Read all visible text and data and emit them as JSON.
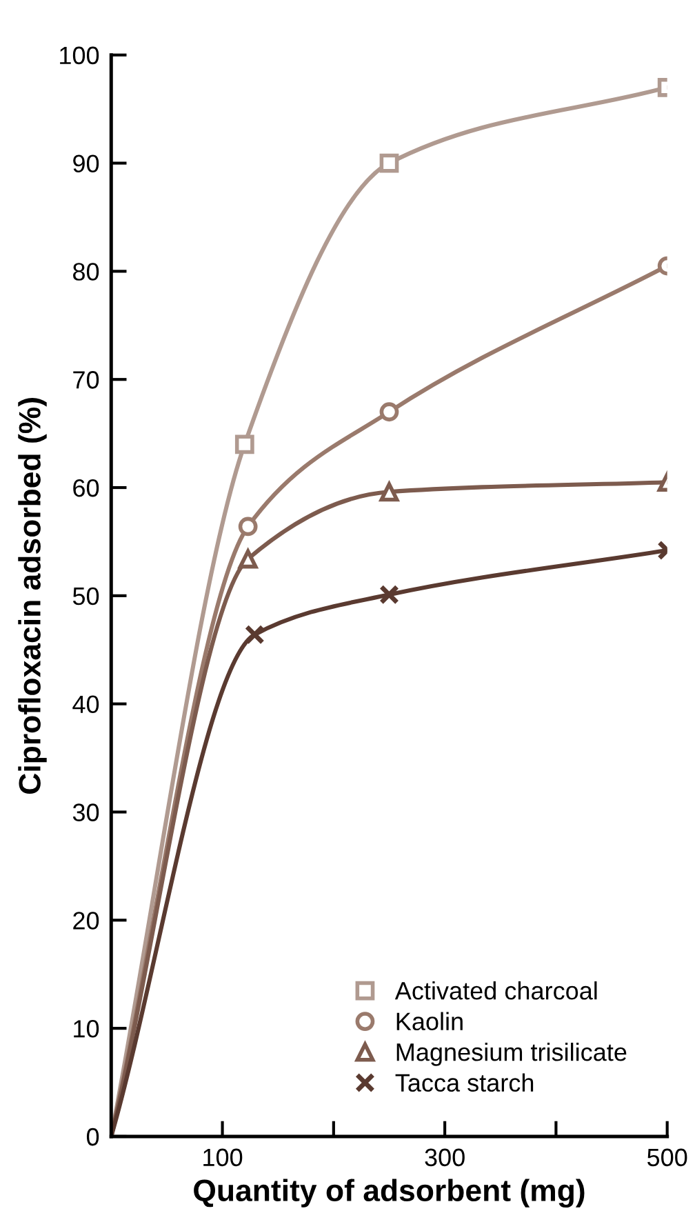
{
  "chart_data": {
    "type": "line",
    "xlabel": "Quantity of adsorbent (mg)",
    "ylabel": "Ciprofloxacin adsorbed (%)",
    "xlim": [
      0,
      500
    ],
    "ylim": [
      0,
      100
    ],
    "xticks": [
      100,
      {
        "value": 200,
        "label": null
      },
      300,
      {
        "value": 400,
        "label": null
      },
      500
    ],
    "yticks": [
      0,
      10,
      20,
      30,
      40,
      50,
      60,
      70,
      80,
      90,
      100
    ],
    "grid": false,
    "legend": "bottom right",
    "series": [
      {
        "name": "Activated charcoal",
        "color": "#b09a90",
        "marker": "square",
        "x": [
          0,
          120,
          250,
          500
        ],
        "values": [
          0,
          64,
          90,
          97
        ]
      },
      {
        "name": "Kaolin",
        "color": "#9a7a6c",
        "marker": "circle",
        "x": [
          0,
          123,
          250,
          500
        ],
        "values": [
          0,
          56.4,
          67,
          80.5
        ]
      },
      {
        "name": "Magnesium trisilicate",
        "color": "#7d5b4e",
        "marker": "triangle",
        "x": [
          0,
          123,
          250,
          500
        ],
        "values": [
          0,
          53.4,
          59.6,
          60.5
        ]
      },
      {
        "name": "Tacca starch",
        "color": "#5a3a30",
        "marker": "cross",
        "x": [
          0,
          129,
          250,
          500
        ],
        "values": [
          0,
          46.4,
          50.1,
          54.2
        ]
      }
    ]
  }
}
